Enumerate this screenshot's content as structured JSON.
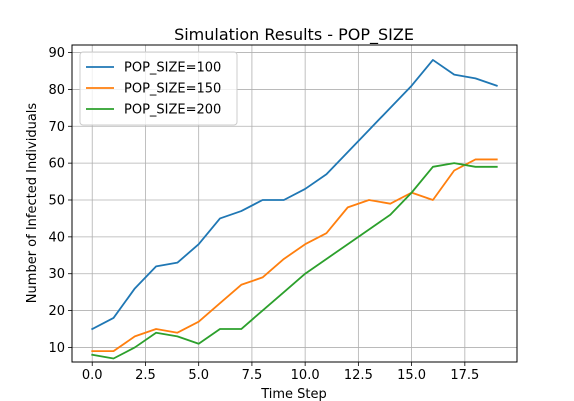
{
  "chart_data": {
    "type": "line",
    "title": "Simulation Results - POP_SIZE",
    "xlabel": "Time Step",
    "ylabel": "Number of Infected Individuals",
    "xlim": [
      -0.95,
      19.95
    ],
    "ylim": [
      6.05,
      92.05
    ],
    "x_ticks": [
      0.0,
      2.5,
      5.0,
      7.5,
      10.0,
      12.5,
      15.0,
      17.5
    ],
    "x_tick_labels": [
      "0.0",
      "2.5",
      "5.0",
      "7.5",
      "10.0",
      "12.5",
      "15.0",
      "17.5"
    ],
    "y_ticks": [
      10,
      20,
      30,
      40,
      50,
      60,
      70,
      80,
      90
    ],
    "y_tick_labels": [
      "10",
      "20",
      "30",
      "40",
      "50",
      "60",
      "70",
      "80",
      "90"
    ],
    "grid": true,
    "legend_position": "top-left",
    "x": [
      0,
      1,
      2,
      3,
      4,
      5,
      6,
      7,
      8,
      9,
      10,
      11,
      12,
      13,
      14,
      15,
      16,
      17,
      18,
      19
    ],
    "series": [
      {
        "name": "POP_SIZE=100",
        "color": "#1f77b4",
        "values": [
          15,
          18,
          26,
          32,
          33,
          38,
          45,
          47,
          50,
          50,
          53,
          57,
          63,
          69,
          75,
          81,
          88,
          84,
          83,
          81
        ]
      },
      {
        "name": "POP_SIZE=150",
        "color": "#ff7f0e",
        "values": [
          9,
          9,
          13,
          15,
          14,
          17,
          22,
          27,
          29,
          34,
          38,
          41,
          48,
          50,
          49,
          52,
          50,
          58,
          61,
          61
        ]
      },
      {
        "name": "POP_SIZE=200",
        "color": "#2ca02c",
        "values": [
          8,
          7,
          10,
          14,
          13,
          11,
          15,
          15,
          20,
          25,
          30,
          34,
          38,
          42,
          46,
          52,
          59,
          60,
          59,
          59
        ]
      }
    ]
  }
}
